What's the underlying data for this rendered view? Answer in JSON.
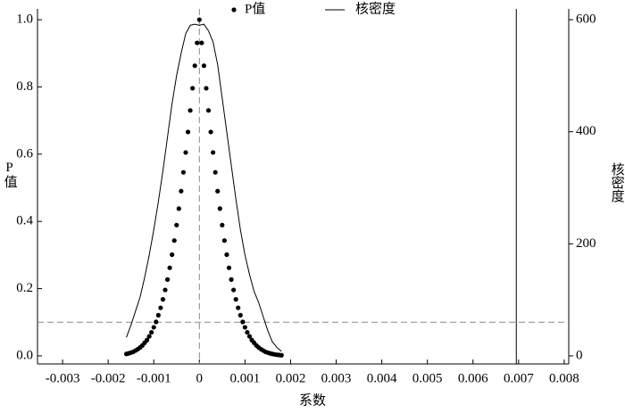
{
  "chart_data": {
    "type": "scatter",
    "x_label": "系数",
    "y_label": "P值",
    "y2_label": "核密度",
    "xlim": [
      -0.00355,
      0.0081
    ],
    "xticks": [
      -0.003,
      -0.002,
      -0.001,
      0,
      0.001,
      0.002,
      0.003,
      0.004,
      0.005,
      0.006,
      0.007,
      0.008
    ],
    "ylim": [
      -0.024,
      1.032
    ],
    "yticks": [
      {
        "value": 0,
        "label": "0.0"
      },
      0.2,
      0.4,
      0.6,
      0.8,
      {
        "value": 1,
        "label": "1.0"
      }
    ],
    "y2lim": [
      -14.4,
      619.2
    ],
    "y2ticks": [
      0,
      200,
      400,
      600
    ],
    "vlines": [
      {
        "value": 0,
        "style": "dashed"
      },
      {
        "value": 0.00695,
        "style": "solid"
      }
    ],
    "hlines": [
      {
        "value": 0.1,
        "style": "dashed"
      }
    ],
    "series": [
      {
        "name": "P值",
        "type": "scatter",
        "color": "#000000",
        "x": [
          -0.0016,
          -0.00155,
          -0.0015,
          -0.00145,
          -0.0014,
          -0.00135,
          -0.0013,
          -0.00125,
          -0.0012,
          -0.00115,
          -0.0011,
          -0.00105,
          -0.001,
          -0.00095,
          -0.0009,
          -0.00085,
          -0.0008,
          -0.00075,
          -0.0007,
          -0.00065,
          -0.0006,
          -0.00055,
          -0.0005,
          -0.00045,
          -0.0004,
          -0.00035,
          -0.0003,
          -0.00025,
          -0.0002,
          -0.00015,
          -0.0001,
          -5e-05,
          0,
          5e-05,
          0.0001,
          0.00015,
          0.0002,
          0.00025,
          0.0003,
          0.00035,
          0.0004,
          0.00045,
          0.0005,
          0.00055,
          0.0006,
          0.00065,
          0.0007,
          0.00075,
          0.0008,
          0.00085,
          0.0009,
          0.00095,
          0.001,
          0.00105,
          0.0011,
          0.00115,
          0.0012,
          0.00125,
          0.0013,
          0.00135,
          0.0014,
          0.00145,
          0.0015,
          0.00155,
          0.0016,
          0.00165,
          0.0017,
          0.00175,
          0.0018
        ],
        "values": [
          0.0058,
          0.0075,
          0.0097,
          0.012,
          0.016,
          0.02,
          0.025,
          0.031,
          0.039,
          0.047,
          0.058,
          0.07,
          0.085,
          0.101,
          0.121,
          0.143,
          0.168,
          0.196,
          0.227,
          0.262,
          0.301,
          0.343,
          0.389,
          0.438,
          0.49,
          0.546,
          0.605,
          0.666,
          0.73,
          0.796,
          0.863,
          0.931,
          1.0,
          0.931,
          0.863,
          0.796,
          0.73,
          0.666,
          0.605,
          0.546,
          0.49,
          0.438,
          0.389,
          0.343,
          0.301,
          0.262,
          0.227,
          0.196,
          0.168,
          0.143,
          0.121,
          0.101,
          0.085,
          0.07,
          0.058,
          0.047,
          0.039,
          0.031,
          0.025,
          0.02,
          0.016,
          0.012,
          0.0097,
          0.0075,
          0.0058,
          0.0044,
          0.0034,
          0.0026,
          0.0019
        ]
      },
      {
        "name": "核密度",
        "type": "line",
        "axis": "y2",
        "color": "#000000",
        "x": [
          -0.0016,
          -0.0015,
          -0.0014,
          -0.0013,
          -0.0012,
          -0.0011,
          -0.001,
          -0.0009,
          -0.0008,
          -0.0007,
          -0.0006,
          -0.0005,
          -0.0004,
          -0.0003,
          -0.0002,
          -0.0001,
          0,
          0.0001,
          0.0002,
          0.0003,
          0.0004,
          0.0005,
          0.0006,
          0.0007,
          0.0008,
          0.0009,
          0.001,
          0.0011,
          0.0012,
          0.0013,
          0.0014,
          0.0015,
          0.0016,
          0.0017,
          0.0018
        ],
        "values": [
          33,
          55,
          80,
          105,
          140,
          180,
          225,
          275,
          330,
          390,
          450,
          500,
          540,
          575,
          590,
          592,
          590,
          592,
          580,
          560,
          520,
          460,
          400,
          340,
          280,
          225,
          180,
          145,
          115,
          95,
          70,
          45,
          25,
          15,
          8
        ]
      }
    ]
  }
}
